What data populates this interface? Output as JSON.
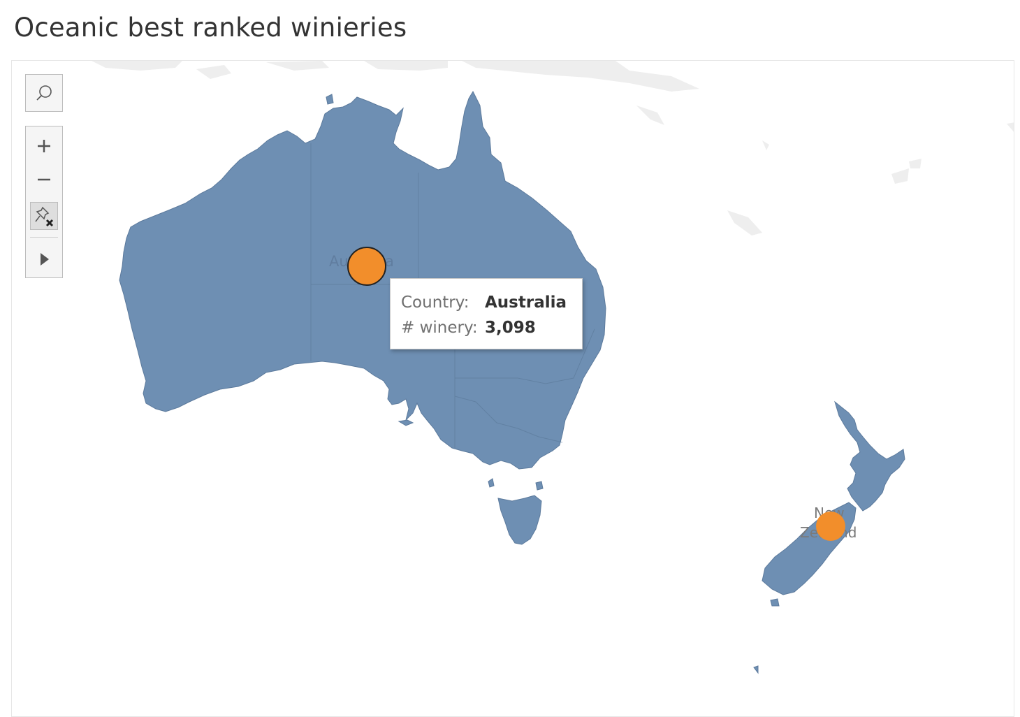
{
  "title": "Oceanic best ranked winieries",
  "toolbar": {
    "search_icon": "search-icon",
    "zoom_in_icon": "plus-icon",
    "zoom_out_icon": "minus-icon",
    "pin_icon": "unpin-icon",
    "expand_icon": "play-icon"
  },
  "map": {
    "land_color": "#6e8fb3",
    "mark_color": "#f28e2b",
    "labels": {
      "australia": "Australia",
      "nz_line1": "New",
      "nz_line2": "Zealand"
    },
    "marks": [
      {
        "country": "Australia",
        "winery_count": "3,098",
        "selected": true
      },
      {
        "country": "New Zealand",
        "selected": false
      }
    ]
  },
  "tooltip": {
    "country_key": "Country:",
    "country_value": "Australia",
    "winery_key": "# winery:",
    "winery_value": "3,098"
  }
}
